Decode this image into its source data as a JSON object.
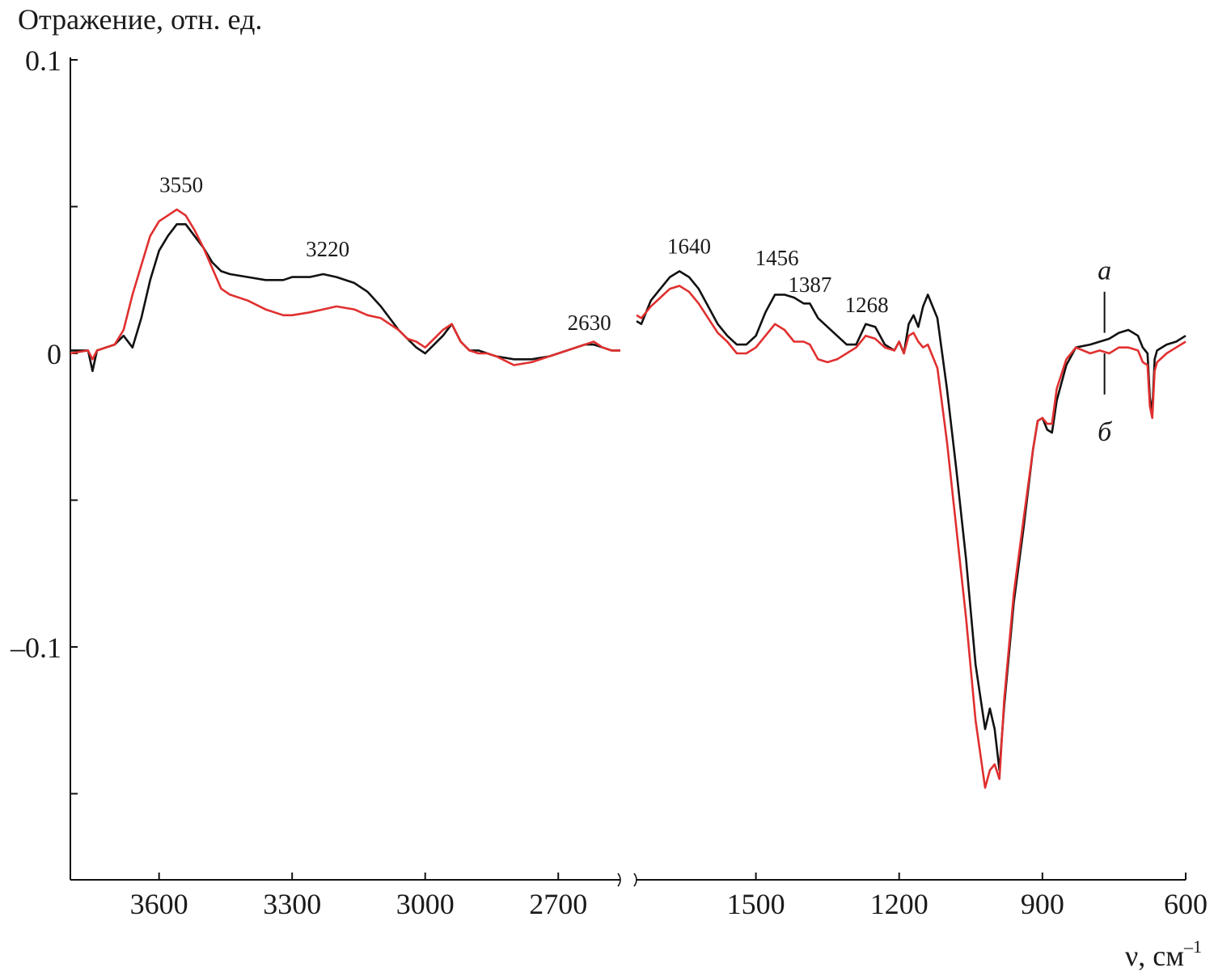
{
  "chart_data": {
    "type": "line",
    "title": "",
    "ylabel": "Отражение, отн. ед.",
    "xlabel_main": "ν, см",
    "xlabel_sup": "–1",
    "ylim": [
      -0.175,
      0.1
    ],
    "y_ticks": [
      {
        "value": 0.1,
        "label": "0.1"
      },
      {
        "value": 0.05,
        "label": ""
      },
      {
        "value": 0,
        "label": "0"
      },
      {
        "value": -0.05,
        "label": ""
      },
      {
        "value": -0.1,
        "label": "–0.1"
      },
      {
        "value": -0.15,
        "label": ""
      }
    ],
    "x_axis_broken": true,
    "x_segments": [
      {
        "xlim": [
          3800,
          2560
        ],
        "ticks": [
          {
            "value": 3600,
            "label": "3600"
          },
          {
            "value": 3300,
            "label": "3300"
          },
          {
            "value": 3000,
            "label": "3000"
          },
          {
            "value": 2700,
            "label": "2700"
          }
        ]
      },
      {
        "xlim": [
          1750,
          600
        ],
        "ticks": [
          {
            "value": 1500,
            "label": "1500"
          },
          {
            "value": 1200,
            "label": "1200"
          },
          {
            "value": 900,
            "label": "900"
          },
          {
            "value": 600,
            "label": "600"
          }
        ]
      }
    ],
    "series": [
      {
        "name": "а",
        "color": "#111111",
        "segments": [
          [
            [
              3800,
              0.001
            ],
            [
              3760,
              0.001
            ],
            [
              3750,
              -0.006
            ],
            [
              3740,
              0.001
            ],
            [
              3700,
              0.003
            ],
            [
              3680,
              0.006
            ],
            [
              3660,
              0.002
            ],
            [
              3640,
              0.012
            ],
            [
              3620,
              0.025
            ],
            [
              3600,
              0.035
            ],
            [
              3580,
              0.04
            ],
            [
              3560,
              0.044
            ],
            [
              3540,
              0.044
            ],
            [
              3520,
              0.04
            ],
            [
              3500,
              0.036
            ],
            [
              3480,
              0.031
            ],
            [
              3460,
              0.028
            ],
            [
              3440,
              0.027
            ],
            [
              3400,
              0.026
            ],
            [
              3360,
              0.025
            ],
            [
              3320,
              0.025
            ],
            [
              3300,
              0.026
            ],
            [
              3260,
              0.026
            ],
            [
              3230,
              0.027
            ],
            [
              3200,
              0.026
            ],
            [
              3160,
              0.024
            ],
            [
              3130,
              0.021
            ],
            [
              3100,
              0.016
            ],
            [
              3080,
              0.012
            ],
            [
              3060,
              0.008
            ],
            [
              3040,
              0.005
            ],
            [
              3020,
              0.002
            ],
            [
              3000,
              0.0
            ],
            [
              2980,
              0.003
            ],
            [
              2960,
              0.006
            ],
            [
              2940,
              0.01
            ],
            [
              2920,
              0.004
            ],
            [
              2900,
              0.001
            ],
            [
              2880,
              0.001
            ],
            [
              2860,
              0.0
            ],
            [
              2840,
              -0.001
            ],
            [
              2800,
              -0.002
            ],
            [
              2760,
              -0.002
            ],
            [
              2720,
              -0.001
            ],
            [
              2680,
              0.001
            ],
            [
              2640,
              0.003
            ],
            [
              2620,
              0.003
            ],
            [
              2600,
              0.002
            ],
            [
              2580,
              0.001
            ],
            [
              2560,
              0.001
            ]
          ],
          [
            [
              1750,
              0.011
            ],
            [
              1740,
              0.01
            ],
            [
              1720,
              0.018
            ],
            [
              1700,
              0.022
            ],
            [
              1680,
              0.026
            ],
            [
              1660,
              0.028
            ],
            [
              1640,
              0.026
            ],
            [
              1620,
              0.022
            ],
            [
              1600,
              0.016
            ],
            [
              1580,
              0.01
            ],
            [
              1560,
              0.006
            ],
            [
              1540,
              0.003
            ],
            [
              1520,
              0.003
            ],
            [
              1500,
              0.006
            ],
            [
              1480,
              0.014
            ],
            [
              1460,
              0.02
            ],
            [
              1440,
              0.02
            ],
            [
              1420,
              0.019
            ],
            [
              1400,
              0.017
            ],
            [
              1387,
              0.017
            ],
            [
              1370,
              0.012
            ],
            [
              1350,
              0.009
            ],
            [
              1330,
              0.006
            ],
            [
              1310,
              0.003
            ],
            [
              1290,
              0.003
            ],
            [
              1270,
              0.01
            ],
            [
              1250,
              0.009
            ],
            [
              1230,
              0.003
            ],
            [
              1210,
              0.001
            ],
            [
              1200,
              0.004
            ],
            [
              1190,
              0.0
            ],
            [
              1180,
              0.01
            ],
            [
              1170,
              0.013
            ],
            [
              1160,
              0.009
            ],
            [
              1150,
              0.016
            ],
            [
              1140,
              0.02
            ],
            [
              1120,
              0.012
            ],
            [
              1100,
              -0.012
            ],
            [
              1080,
              -0.04
            ],
            [
              1060,
              -0.07
            ],
            [
              1040,
              -0.106
            ],
            [
              1020,
              -0.128
            ],
            [
              1010,
              -0.121
            ],
            [
              1000,
              -0.128
            ],
            [
              990,
              -0.142
            ],
            [
              980,
              -0.12
            ],
            [
              960,
              -0.085
            ],
            [
              940,
              -0.06
            ],
            [
              920,
              -0.033
            ],
            [
              910,
              -0.023
            ],
            [
              900,
              -0.022
            ],
            [
              890,
              -0.026
            ],
            [
              880,
              -0.027
            ],
            [
              870,
              -0.016
            ],
            [
              850,
              -0.004
            ],
            [
              830,
              0.002
            ],
            [
              800,
              0.003
            ],
            [
              780,
              0.004
            ],
            [
              760,
              0.005
            ],
            [
              740,
              0.007
            ],
            [
              720,
              0.008
            ],
            [
              700,
              0.006
            ],
            [
              690,
              0.002
            ],
            [
              680,
              0.0
            ],
            [
              675,
              -0.015
            ],
            [
              670,
              -0.02
            ],
            [
              665,
              -0.002
            ],
            [
              660,
              0.001
            ],
            [
              640,
              0.003
            ],
            [
              620,
              0.004
            ],
            [
              600,
              0.006
            ]
          ]
        ]
      },
      {
        "name": "б",
        "color": "#e0302f",
        "segments": [
          [
            [
              3800,
              0.0
            ],
            [
              3760,
              0.001
            ],
            [
              3750,
              -0.002
            ],
            [
              3740,
              0.001
            ],
            [
              3700,
              0.003
            ],
            [
              3680,
              0.008
            ],
            [
              3660,
              0.02
            ],
            [
              3640,
              0.03
            ],
            [
              3620,
              0.04
            ],
            [
              3600,
              0.045
            ],
            [
              3580,
              0.047
            ],
            [
              3560,
              0.049
            ],
            [
              3540,
              0.047
            ],
            [
              3520,
              0.042
            ],
            [
              3500,
              0.036
            ],
            [
              3480,
              0.029
            ],
            [
              3460,
              0.022
            ],
            [
              3440,
              0.02
            ],
            [
              3400,
              0.018
            ],
            [
              3360,
              0.015
            ],
            [
              3320,
              0.013
            ],
            [
              3300,
              0.013
            ],
            [
              3260,
              0.014
            ],
            [
              3230,
              0.015
            ],
            [
              3200,
              0.016
            ],
            [
              3160,
              0.015
            ],
            [
              3130,
              0.013
            ],
            [
              3100,
              0.012
            ],
            [
              3080,
              0.01
            ],
            [
              3060,
              0.008
            ],
            [
              3040,
              0.005
            ],
            [
              3020,
              0.004
            ],
            [
              3000,
              0.002
            ],
            [
              2980,
              0.005
            ],
            [
              2960,
              0.008
            ],
            [
              2940,
              0.01
            ],
            [
              2920,
              0.004
            ],
            [
              2900,
              0.001
            ],
            [
              2880,
              0.0
            ],
            [
              2860,
              0.0
            ],
            [
              2840,
              -0.001
            ],
            [
              2800,
              -0.004
            ],
            [
              2760,
              -0.003
            ],
            [
              2720,
              -0.001
            ],
            [
              2680,
              0.001
            ],
            [
              2640,
              0.003
            ],
            [
              2620,
              0.004
            ],
            [
              2600,
              0.002
            ],
            [
              2580,
              0.001
            ],
            [
              2560,
              0.001
            ]
          ],
          [
            [
              1750,
              0.013
            ],
            [
              1740,
              0.012
            ],
            [
              1720,
              0.016
            ],
            [
              1700,
              0.019
            ],
            [
              1680,
              0.022
            ],
            [
              1660,
              0.023
            ],
            [
              1640,
              0.021
            ],
            [
              1620,
              0.017
            ],
            [
              1600,
              0.012
            ],
            [
              1580,
              0.007
            ],
            [
              1560,
              0.004
            ],
            [
              1540,
              0.0
            ],
            [
              1520,
              0.0
            ],
            [
              1500,
              0.002
            ],
            [
              1480,
              0.006
            ],
            [
              1460,
              0.01
            ],
            [
              1440,
              0.008
            ],
            [
              1420,
              0.004
            ],
            [
              1400,
              0.004
            ],
            [
              1387,
              0.003
            ],
            [
              1370,
              -0.002
            ],
            [
              1350,
              -0.003
            ],
            [
              1330,
              -0.002
            ],
            [
              1310,
              0.0
            ],
            [
              1290,
              0.002
            ],
            [
              1270,
              0.006
            ],
            [
              1250,
              0.005
            ],
            [
              1230,
              0.002
            ],
            [
              1210,
              0.001
            ],
            [
              1200,
              0.004
            ],
            [
              1190,
              0.0
            ],
            [
              1180,
              0.006
            ],
            [
              1170,
              0.007
            ],
            [
              1160,
              0.004
            ],
            [
              1150,
              0.002
            ],
            [
              1140,
              0.003
            ],
            [
              1120,
              -0.005
            ],
            [
              1100,
              -0.03
            ],
            [
              1080,
              -0.06
            ],
            [
              1060,
              -0.09
            ],
            [
              1040,
              -0.125
            ],
            [
              1020,
              -0.148
            ],
            [
              1010,
              -0.142
            ],
            [
              1000,
              -0.14
            ],
            [
              990,
              -0.145
            ],
            [
              980,
              -0.118
            ],
            [
              960,
              -0.082
            ],
            [
              940,
              -0.057
            ],
            [
              920,
              -0.033
            ],
            [
              910,
              -0.023
            ],
            [
              900,
              -0.022
            ],
            [
              890,
              -0.024
            ],
            [
              880,
              -0.024
            ],
            [
              870,
              -0.012
            ],
            [
              850,
              -0.002
            ],
            [
              830,
              0.002
            ],
            [
              800,
              0.0
            ],
            [
              780,
              0.001
            ],
            [
              760,
              0.0
            ],
            [
              740,
              0.002
            ],
            [
              720,
              0.002
            ],
            [
              700,
              0.001
            ],
            [
              690,
              -0.003
            ],
            [
              680,
              -0.004
            ],
            [
              675,
              -0.018
            ],
            [
              670,
              -0.022
            ],
            [
              665,
              -0.006
            ],
            [
              660,
              -0.003
            ],
            [
              640,
              0.0
            ],
            [
              620,
              0.002
            ],
            [
              600,
              0.004
            ]
          ]
        ]
      }
    ],
    "annotations": [
      {
        "text": "3550",
        "x": 3550,
        "y": 0.055,
        "segment": 0
      },
      {
        "text": "3220",
        "x": 3220,
        "y": 0.033,
        "segment": 0
      },
      {
        "text": "2630",
        "x": 2630,
        "y": 0.008,
        "segment": 0
      },
      {
        "text": "1640",
        "x": 1640,
        "y": 0.034,
        "segment": 1
      },
      {
        "text": "1456",
        "x": 1456,
        "y": 0.03,
        "segment": 1
      },
      {
        "text": "1387",
        "x": 1387,
        "y": 0.021,
        "segment": 1
      },
      {
        "text": "1268",
        "x": 1268,
        "y": 0.014,
        "segment": 1
      }
    ],
    "curve_labels": [
      {
        "text": "а",
        "x": 770,
        "y": 0.028,
        "line_from": 0.021,
        "line_to": 0.007
      },
      {
        "text": "б",
        "x": 770,
        "y": -0.027,
        "line_from": 0.0,
        "line_to": -0.014
      }
    ]
  }
}
